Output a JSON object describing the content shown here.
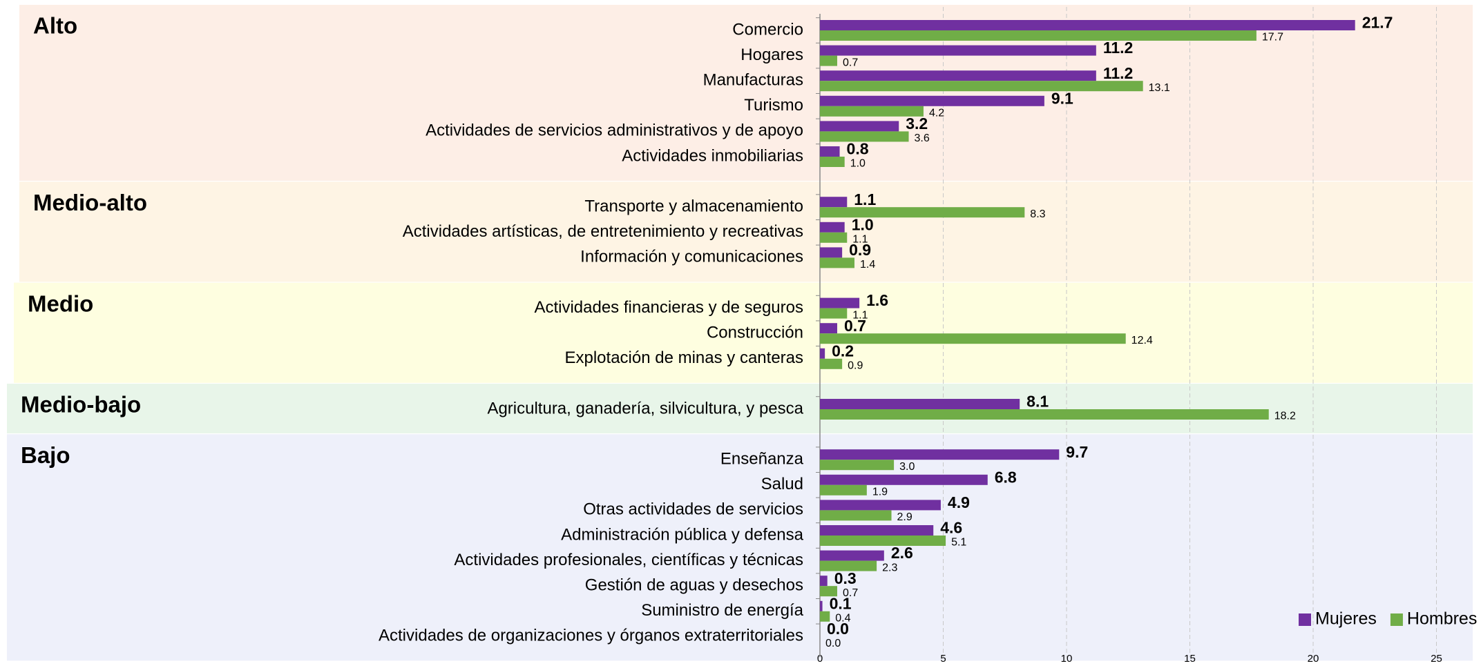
{
  "chart_data": {
    "type": "bar",
    "groups": [
      {
        "label": "Alto",
        "color": "#fdeee6",
        "categories": [
          "Comercio",
          "Hogares",
          "Manufacturas",
          "Turismo",
          "Actividades de servicios administrativos y de apoyo",
          "Actividades inmobiliarias"
        ]
      },
      {
        "label": "Medio-alto",
        "color": "#fef4e4",
        "categories": [
          "Transporte y almacenamiento",
          "Actividades artísticas, de entretenimiento y recreativas",
          "Información y comunicaciones"
        ]
      },
      {
        "label": "Medio",
        "color": "#fefee0",
        "categories": [
          "Actividades financieras y de seguros",
          "Construcción",
          "Explotación de minas y canteras"
        ]
      },
      {
        "label": "Medio-bajo",
        "color": "#e8f5e9",
        "categories": [
          "Agricultura, ganadería, silvicultura, y pesca"
        ]
      },
      {
        "label": "Bajo",
        "color": "#eef0fa",
        "categories": [
          "Enseñanza",
          "Salud",
          "Otras actividades de servicios",
          "Administración pública y defensa",
          "Actividades profesionales, científicas y técnicas",
          "Gestión de aguas y desechos",
          "Suministro de energía",
          "Actividades de organizaciones y órganos extraterritoriales"
        ]
      }
    ],
    "series": [
      {
        "name": "Mujeres",
        "color": "#7030a0",
        "values": [
          21.7,
          11.2,
          11.2,
          9.1,
          3.2,
          0.8,
          1.1,
          1.0,
          0.9,
          1.6,
          0.7,
          0.2,
          8.1,
          9.7,
          6.8,
          4.9,
          4.6,
          2.6,
          0.3,
          0.1,
          0.0
        ],
        "value_labels": [
          "21.7",
          "11.2",
          "11.2",
          "9.1",
          "3.2",
          "0.8",
          "1.1",
          "1.0",
          "0.9",
          "1.6",
          "0.7",
          "0.2",
          "8.1",
          "9.7",
          "6.8",
          "4.9",
          "4.6",
          "2.6",
          "0.3",
          "0.1",
          "0.0"
        ]
      },
      {
        "name": "Hombres",
        "color": "#70ad47",
        "values": [
          17.7,
          0.7,
          13.1,
          4.2,
          3.6,
          1.0,
          8.3,
          1.1,
          1.4,
          1.1,
          12.4,
          0.9,
          18.2,
          3.0,
          1.9,
          2.9,
          5.1,
          2.3,
          0.7,
          0.4,
          0.0
        ],
        "value_labels": [
          "17.7",
          "0.7",
          "13.1",
          "4.2",
          "3.6",
          "1.0",
          "8.3",
          "1.1",
          "1.4",
          "1.1",
          "12.4",
          "0.9",
          "18.2",
          "3.0",
          "1.9",
          "2.9",
          "5.1",
          "2.3",
          "0.7",
          "0.4",
          "0.0"
        ]
      }
    ],
    "xlim": [
      0,
      26.4
    ],
    "xticks": [
      0,
      5,
      10,
      15,
      20,
      25
    ],
    "grid": true,
    "legend": "lower right"
  }
}
